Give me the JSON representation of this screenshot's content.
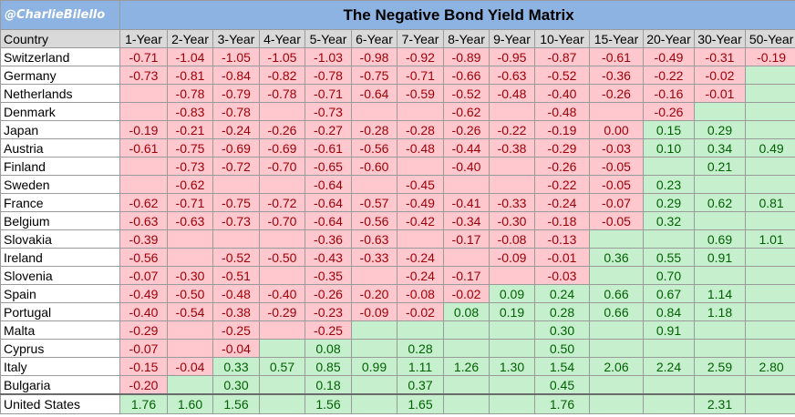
{
  "chart_data": {
    "type": "table",
    "handle": "@CharlieBilello",
    "title": "The Negative Bond Yield Matrix",
    "country_header": "Country",
    "columns": [
      "1-Year",
      "2-Year",
      "3-Year",
      "4-Year",
      "5-Year",
      "6-Year",
      "7-Year",
      "8-Year",
      "9-Year",
      "10-Year",
      "15-Year",
      "20-Year",
      "30-Year",
      "50-Year"
    ],
    "rows": [
      {
        "country": "Switzerland",
        "values": [
          "-0.71",
          "-1.04",
          "-1.05",
          "-1.05",
          "-1.03",
          "-0.98",
          "-0.92",
          "-0.89",
          "-0.95",
          "-0.87",
          "-0.61",
          "-0.49",
          "-0.31",
          "-0.19"
        ],
        "fill": [
          "n",
          "n",
          "n",
          "n",
          "n",
          "n",
          "n",
          "n",
          "n",
          "n",
          "n",
          "n",
          "n",
          "n"
        ]
      },
      {
        "country": "Germany",
        "values": [
          "-0.73",
          "-0.81",
          "-0.84",
          "-0.82",
          "-0.78",
          "-0.75",
          "-0.71",
          "-0.66",
          "-0.63",
          "-0.52",
          "-0.36",
          "-0.22",
          "-0.02",
          ""
        ],
        "fill": [
          "n",
          "n",
          "n",
          "n",
          "n",
          "n",
          "n",
          "n",
          "n",
          "n",
          "n",
          "n",
          "n",
          "p"
        ]
      },
      {
        "country": "Netherlands",
        "values": [
          "",
          "-0.78",
          "-0.79",
          "-0.78",
          "-0.71",
          "-0.64",
          "-0.59",
          "-0.52",
          "-0.48",
          "-0.40",
          "-0.26",
          "-0.16",
          "-0.01",
          ""
        ],
        "fill": [
          "n",
          "n",
          "n",
          "n",
          "n",
          "n",
          "n",
          "n",
          "n",
          "n",
          "n",
          "n",
          "n",
          "p"
        ]
      },
      {
        "country": "Denmark",
        "values": [
          "",
          "-0.83",
          "-0.78",
          "",
          "-0.73",
          "",
          "",
          "-0.62",
          "",
          "-0.48",
          "",
          "-0.26",
          "",
          ""
        ],
        "fill": [
          "n",
          "n",
          "n",
          "n",
          "n",
          "n",
          "n",
          "n",
          "n",
          "n",
          "n",
          "n",
          "p",
          "p"
        ]
      },
      {
        "country": "Japan",
        "values": [
          "-0.19",
          "-0.21",
          "-0.24",
          "-0.26",
          "-0.27",
          "-0.28",
          "-0.28",
          "-0.26",
          "-0.22",
          "-0.19",
          "0.00",
          "0.15",
          "0.29",
          ""
        ],
        "fill": [
          "n",
          "n",
          "n",
          "n",
          "n",
          "n",
          "n",
          "n",
          "n",
          "n",
          "n",
          "p",
          "p",
          "p"
        ]
      },
      {
        "country": "Austria",
        "values": [
          "-0.61",
          "-0.75",
          "-0.69",
          "-0.69",
          "-0.61",
          "-0.56",
          "-0.48",
          "-0.44",
          "-0.38",
          "-0.29",
          "-0.03",
          "0.10",
          "0.34",
          "0.49"
        ],
        "fill": [
          "n",
          "n",
          "n",
          "n",
          "n",
          "n",
          "n",
          "n",
          "n",
          "n",
          "n",
          "p",
          "p",
          "p"
        ]
      },
      {
        "country": "Finland",
        "values": [
          "",
          "-0.73",
          "-0.72",
          "-0.70",
          "-0.65",
          "-0.60",
          "",
          "-0.40",
          "",
          "-0.26",
          "-0.05",
          "",
          "0.21",
          ""
        ],
        "fill": [
          "n",
          "n",
          "n",
          "n",
          "n",
          "n",
          "n",
          "n",
          "n",
          "n",
          "n",
          "p",
          "p",
          "p"
        ]
      },
      {
        "country": "Sweden",
        "values": [
          "",
          "-0.62",
          "",
          "",
          "-0.64",
          "",
          "-0.45",
          "",
          "",
          "-0.22",
          "-0.05",
          "0.23",
          "",
          ""
        ],
        "fill": [
          "n",
          "n",
          "n",
          "n",
          "n",
          "n",
          "n",
          "n",
          "n",
          "n",
          "n",
          "p",
          "p",
          "p"
        ]
      },
      {
        "country": "France",
        "values": [
          "-0.62",
          "-0.71",
          "-0.75",
          "-0.72",
          "-0.64",
          "-0.57",
          "-0.49",
          "-0.41",
          "-0.33",
          "-0.24",
          "-0.07",
          "0.29",
          "0.62",
          "0.81"
        ],
        "fill": [
          "n",
          "n",
          "n",
          "n",
          "n",
          "n",
          "n",
          "n",
          "n",
          "n",
          "n",
          "p",
          "p",
          "p"
        ]
      },
      {
        "country": "Belgium",
        "values": [
          "-0.63",
          "-0.63",
          "-0.73",
          "-0.70",
          "-0.64",
          "-0.56",
          "-0.42",
          "-0.34",
          "-0.30",
          "-0.18",
          "-0.05",
          "0.32",
          "",
          ""
        ],
        "fill": [
          "n",
          "n",
          "n",
          "n",
          "n",
          "n",
          "n",
          "n",
          "n",
          "n",
          "n",
          "p",
          "p",
          "p"
        ]
      },
      {
        "country": "Slovakia",
        "values": [
          "-0.39",
          "",
          "",
          "",
          "-0.36",
          "-0.63",
          "",
          "-0.17",
          "-0.08",
          "-0.13",
          "",
          "",
          "0.69",
          "1.01"
        ],
        "fill": [
          "n",
          "n",
          "n",
          "n",
          "n",
          "n",
          "n",
          "n",
          "n",
          "n",
          "p",
          "p",
          "p",
          "p"
        ]
      },
      {
        "country": "Ireland",
        "values": [
          "-0.56",
          "",
          "-0.52",
          "-0.50",
          "-0.43",
          "-0.33",
          "-0.24",
          "",
          "-0.09",
          "-0.01",
          "0.36",
          "0.55",
          "0.91",
          ""
        ],
        "fill": [
          "n",
          "n",
          "n",
          "n",
          "n",
          "n",
          "n",
          "n",
          "n",
          "n",
          "p",
          "p",
          "p",
          "p"
        ]
      },
      {
        "country": "Slovenia",
        "values": [
          "-0.07",
          "-0.30",
          "-0.51",
          "",
          "-0.35",
          "",
          "-0.24",
          "-0.17",
          "",
          "-0.03",
          "",
          "0.70",
          "",
          ""
        ],
        "fill": [
          "n",
          "n",
          "n",
          "n",
          "n",
          "n",
          "n",
          "n",
          "n",
          "n",
          "p",
          "p",
          "p",
          "p"
        ]
      },
      {
        "country": "Spain",
        "values": [
          "-0.49",
          "-0.50",
          "-0.48",
          "-0.40",
          "-0.26",
          "-0.20",
          "-0.08",
          "-0.02",
          "0.09",
          "0.24",
          "0.66",
          "0.67",
          "1.14",
          ""
        ],
        "fill": [
          "n",
          "n",
          "n",
          "n",
          "n",
          "n",
          "n",
          "n",
          "p",
          "p",
          "p",
          "p",
          "p",
          "p"
        ]
      },
      {
        "country": "Portugal",
        "values": [
          "-0.40",
          "-0.54",
          "-0.38",
          "-0.29",
          "-0.23",
          "-0.09",
          "-0.02",
          "0.08",
          "0.19",
          "0.28",
          "0.66",
          "0.84",
          "1.18",
          ""
        ],
        "fill": [
          "n",
          "n",
          "n",
          "n",
          "n",
          "n",
          "n",
          "p",
          "p",
          "p",
          "p",
          "p",
          "p",
          "p"
        ]
      },
      {
        "country": "Malta",
        "values": [
          "-0.29",
          "",
          "-0.25",
          "",
          "-0.25",
          "",
          "",
          "",
          "",
          "0.30",
          "",
          "0.91",
          "",
          ""
        ],
        "fill": [
          "n",
          "n",
          "n",
          "n",
          "n",
          "p",
          "p",
          "p",
          "p",
          "p",
          "p",
          "p",
          "p",
          "p"
        ]
      },
      {
        "country": "Cyprus",
        "values": [
          "-0.07",
          "",
          "-0.04",
          "",
          "0.08",
          "",
          "0.28",
          "",
          "",
          "0.50",
          "",
          "",
          "",
          ""
        ],
        "fill": [
          "n",
          "n",
          "n",
          "p",
          "p",
          "p",
          "p",
          "p",
          "p",
          "p",
          "p",
          "p",
          "p",
          "p"
        ]
      },
      {
        "country": "Italy",
        "values": [
          "-0.15",
          "-0.04",
          "0.33",
          "0.57",
          "0.85",
          "0.99",
          "1.11",
          "1.26",
          "1.30",
          "1.54",
          "2.06",
          "2.24",
          "2.59",
          "2.80"
        ],
        "fill": [
          "n",
          "n",
          "p",
          "p",
          "p",
          "p",
          "p",
          "p",
          "p",
          "p",
          "p",
          "p",
          "p",
          "p"
        ]
      },
      {
        "country": "Bulgaria",
        "values": [
          "-0.20",
          "",
          "0.30",
          "",
          "0.18",
          "",
          "0.37",
          "",
          "",
          "0.45",
          "",
          "",
          "",
          ""
        ],
        "fill": [
          "n",
          "p",
          "p",
          "p",
          "p",
          "p",
          "p",
          "p",
          "p",
          "p",
          "p",
          "p",
          "p",
          "p"
        ]
      },
      {
        "country": "United States",
        "values": [
          "1.76",
          "1.60",
          "1.56",
          "",
          "1.56",
          "",
          "1.65",
          "",
          "",
          "1.76",
          "",
          "",
          "2.31",
          ""
        ],
        "fill": [
          "p",
          "p",
          "p",
          "p",
          "p",
          "p",
          "p",
          "p",
          "p",
          "p",
          "p",
          "p",
          "p",
          "p"
        ]
      }
    ],
    "colors": {
      "negative_fill": "#ffc7ce",
      "negative_text": "#9c0006",
      "positive_fill": "#c6efce",
      "positive_text": "#006100",
      "header_fill": "#8db3e2"
    }
  }
}
